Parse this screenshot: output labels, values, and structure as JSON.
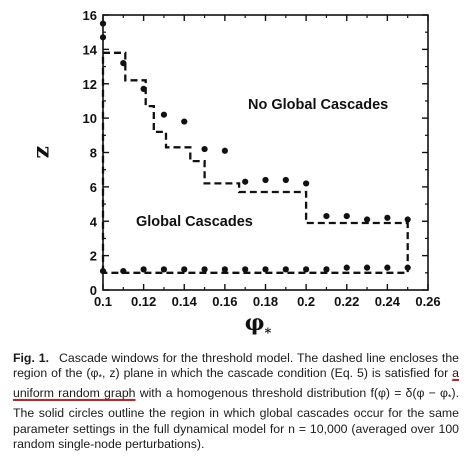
{
  "chart_data": {
    "type": "scatter",
    "title": "",
    "xlabel": "φ*",
    "ylabel": "z",
    "xlim": [
      0.1,
      0.26
    ],
    "ylim": [
      0,
      16
    ],
    "x_ticks": [
      "0.1",
      "0.12",
      "0.14",
      "0.16",
      "0.18",
      "0.2",
      "0.22",
      "0.24",
      "0.26"
    ],
    "y_ticks": [
      "0",
      "2",
      "4",
      "6",
      "8",
      "10",
      "12",
      "14",
      "16"
    ],
    "annotations": [
      {
        "text": "No Global Cascades",
        "x": 0.2,
        "y": 11
      },
      {
        "text": "Global Cascades",
        "x": 0.147,
        "y": 4
      }
    ],
    "series": [
      {
        "style": "dashed-line",
        "x": [
          0.1,
          0.1,
          0.111,
          0.111,
          0.111,
          0.121,
          0.121,
          0.125,
          0.125,
          0.131,
          0.131,
          0.143,
          0.143,
          0.15,
          0.15,
          0.167,
          0.167,
          0.2,
          0.2,
          0.25,
          0.25,
          0.1
        ],
        "y": [
          1,
          13.8,
          13.8,
          13.1,
          12.2,
          12.2,
          10.7,
          10.7,
          9.2,
          9.2,
          8.3,
          8.3,
          7.5,
          7.5,
          6.2,
          6.2,
          5.7,
          5.7,
          3.9,
          3.9,
          1,
          1
        ]
      },
      {
        "style": "markers-upper",
        "x": [
          0.1,
          0.1,
          0.11,
          0.12,
          0.13,
          0.14,
          0.15,
          0.16,
          0.17,
          0.18,
          0.19,
          0.2,
          0.21,
          0.22,
          0.23,
          0.24,
          0.25
        ],
        "y": [
          15.5,
          14.7,
          13.2,
          11.7,
          10.2,
          9.8,
          8.2,
          8.1,
          6.3,
          6.4,
          6.4,
          6.2,
          4.3,
          4.3,
          4.1,
          4.2,
          4.1
        ]
      },
      {
        "style": "markers-lower",
        "x": [
          0.1,
          0.11,
          0.12,
          0.13,
          0.14,
          0.15,
          0.16,
          0.17,
          0.18,
          0.19,
          0.2,
          0.21,
          0.22,
          0.23,
          0.24,
          0.25
        ],
        "y": [
          1.1,
          1.1,
          1.2,
          1.2,
          1.2,
          1.2,
          1.2,
          1.2,
          1.2,
          1.2,
          1.2,
          1.2,
          1.3,
          1.3,
          1.3,
          1.3
        ]
      }
    ]
  },
  "caption": {
    "label": "Fig. 1.",
    "part1": "Cascade windows for the threshold model. The dashed line encloses the region of the (φ",
    "sub_star_1": "*",
    "part2": ", z) plane in which the cascade condition (Eq. 5) is satisfied for ",
    "underlined": "a uniform random graph",
    "part3": " with a homogenous threshold distribution f(φ) = δ(φ − φ",
    "sub_star_2": "*",
    "part4": "). The solid circles outline the region in which global cascades occur for the same parameter settings in the full dynamical model for n = 10,000 (averaged over 100 random single-node perturbations)."
  }
}
